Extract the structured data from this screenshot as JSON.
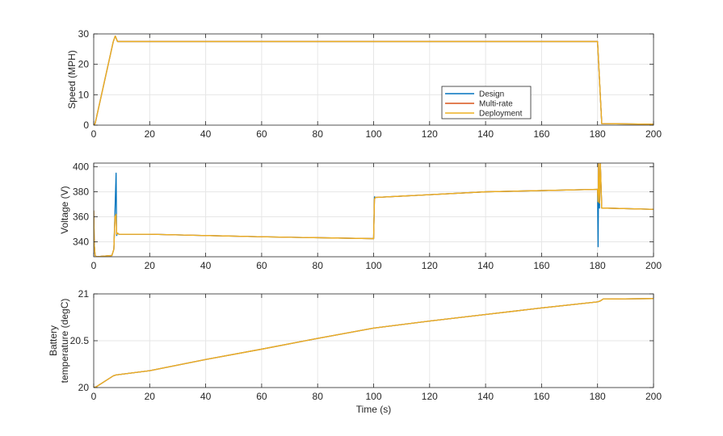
{
  "chart_data": [
    {
      "type": "line",
      "ylabel": "Speed (MPH)",
      "xlabel": "",
      "xlim": [
        0,
        200
      ],
      "ylim": [
        0,
        30
      ],
      "xticks": [
        0,
        20,
        40,
        60,
        80,
        100,
        120,
        140,
        160,
        180,
        200
      ],
      "yticks": [
        0,
        10,
        20,
        30
      ],
      "grid": true,
      "legend": {
        "placement": "inside-right",
        "entries": [
          "Design",
          "Multi-rate",
          "Deployment"
        ]
      },
      "series": [
        {
          "name": "Design",
          "color": "#0072BD",
          "x": [
            0,
            0.5,
            7,
            7.7,
            8.5,
            180,
            181.5,
            200
          ],
          "y": [
            0,
            0.5,
            27.5,
            29.3,
            27.5,
            27.5,
            0.5,
            0.3
          ]
        },
        {
          "name": "Multi-rate",
          "color": "#D95319",
          "x": [
            0,
            0.5,
            7,
            7.7,
            8.5,
            180,
            181.5,
            200
          ],
          "y": [
            0,
            0.5,
            27.5,
            29.3,
            27.5,
            27.5,
            0.5,
            0.3
          ]
        },
        {
          "name": "Deployment",
          "color": "#EDB120",
          "x": [
            0,
            0.5,
            7,
            7.7,
            8.5,
            180,
            181.5,
            200
          ],
          "y": [
            0,
            0.5,
            27.5,
            29.3,
            27.5,
            27.5,
            0.5,
            0.3
          ]
        }
      ]
    },
    {
      "type": "line",
      "ylabel": "Voltage (V)",
      "xlabel": "",
      "xlim": [
        0,
        200
      ],
      "ylim": [
        328,
        403
      ],
      "xticks": [
        0,
        20,
        40,
        60,
        80,
        100,
        120,
        140,
        160,
        180,
        200
      ],
      "yticks": [
        340,
        360,
        380,
        400
      ],
      "grid": true,
      "series": [
        {
          "name": "Design",
          "color": "#0072BD",
          "x": [
            0,
            0.2,
            0.5,
            1,
            6.5,
            7.2,
            7.6,
            8,
            8.2,
            8.5,
            9,
            20,
            60,
            100,
            100.3,
            100.6,
            101,
            140,
            180,
            180.2,
            180.4,
            180.7,
            181,
            181.5,
            182,
            200
          ],
          "y": [
            365,
            338,
            329,
            328,
            329,
            334,
            364,
            395,
            345,
            347,
            346,
            346,
            344,
            342.5,
            376,
            375.5,
            375.5,
            380,
            382,
            336,
            403,
            367,
            403,
            367,
            367,
            366
          ]
        },
        {
          "name": "Multi-rate",
          "color": "#D95319",
          "x": [
            0,
            0.2,
            0.5,
            1,
            6.5,
            7.2,
            7.6,
            8,
            8.2,
            8.5,
            9,
            20,
            60,
            100,
            100.3,
            100.6,
            101,
            140,
            180,
            180.2,
            180.4,
            180.7,
            181,
            181.5,
            182,
            200
          ],
          "y": [
            365,
            338,
            329,
            328,
            329,
            334,
            360,
            362,
            346,
            347,
            346,
            346,
            344,
            342.5,
            374,
            375.5,
            375.5,
            380,
            382,
            372,
            403,
            371,
            403,
            367,
            367,
            366
          ]
        },
        {
          "name": "Deployment",
          "color": "#EDB120",
          "x": [
            0,
            0.2,
            0.5,
            1,
            6.5,
            7.2,
            7.6,
            8,
            8.2,
            8.5,
            9,
            20,
            60,
            100,
            100.3,
            100.6,
            101,
            140,
            180,
            180.2,
            180.4,
            180.7,
            181,
            181.5,
            182,
            200
          ],
          "y": [
            365,
            338,
            329,
            328,
            329,
            334,
            360,
            362,
            346,
            347,
            346,
            346,
            344,
            342.5,
            374,
            375.5,
            375.5,
            380,
            382,
            372,
            403,
            371,
            403,
            367,
            367,
            366
          ]
        }
      ]
    },
    {
      "type": "line",
      "ylabel": [
        "Battery",
        "temperature (degC)"
      ],
      "xlabel": "Time (s)",
      "xlim": [
        0,
        200
      ],
      "ylim": [
        20,
        21
      ],
      "xticks": [
        0,
        20,
        40,
        60,
        80,
        100,
        120,
        140,
        160,
        180,
        200
      ],
      "yticks": [
        20,
        20.5,
        21
      ],
      "grid": true,
      "series": [
        {
          "name": "Design",
          "color": "#0072BD",
          "x": [
            0,
            1,
            7,
            8,
            20,
            40,
            60,
            80,
            100,
            120,
            140,
            160,
            180,
            181,
            182,
            200
          ],
          "y": [
            20,
            20.01,
            20.125,
            20.135,
            20.18,
            20.3,
            20.41,
            20.525,
            20.635,
            20.71,
            20.78,
            20.85,
            20.915,
            20.925,
            20.945,
            20.95
          ]
        },
        {
          "name": "Multi-rate",
          "color": "#D95319",
          "x": [
            0,
            1,
            7,
            8,
            20,
            40,
            60,
            80,
            100,
            120,
            140,
            160,
            180,
            181,
            182,
            200
          ],
          "y": [
            20,
            20.01,
            20.125,
            20.135,
            20.18,
            20.3,
            20.41,
            20.525,
            20.635,
            20.71,
            20.78,
            20.85,
            20.915,
            20.925,
            20.945,
            20.95
          ]
        },
        {
          "name": "Deployment",
          "color": "#EDB120",
          "x": [
            0,
            1,
            7,
            8,
            20,
            40,
            60,
            80,
            100,
            120,
            140,
            160,
            180,
            181,
            182,
            200
          ],
          "y": [
            20,
            20.01,
            20.125,
            20.135,
            20.18,
            20.3,
            20.41,
            20.525,
            20.635,
            20.71,
            20.78,
            20.85,
            20.915,
            20.925,
            20.945,
            20.95
          ]
        }
      ]
    }
  ]
}
